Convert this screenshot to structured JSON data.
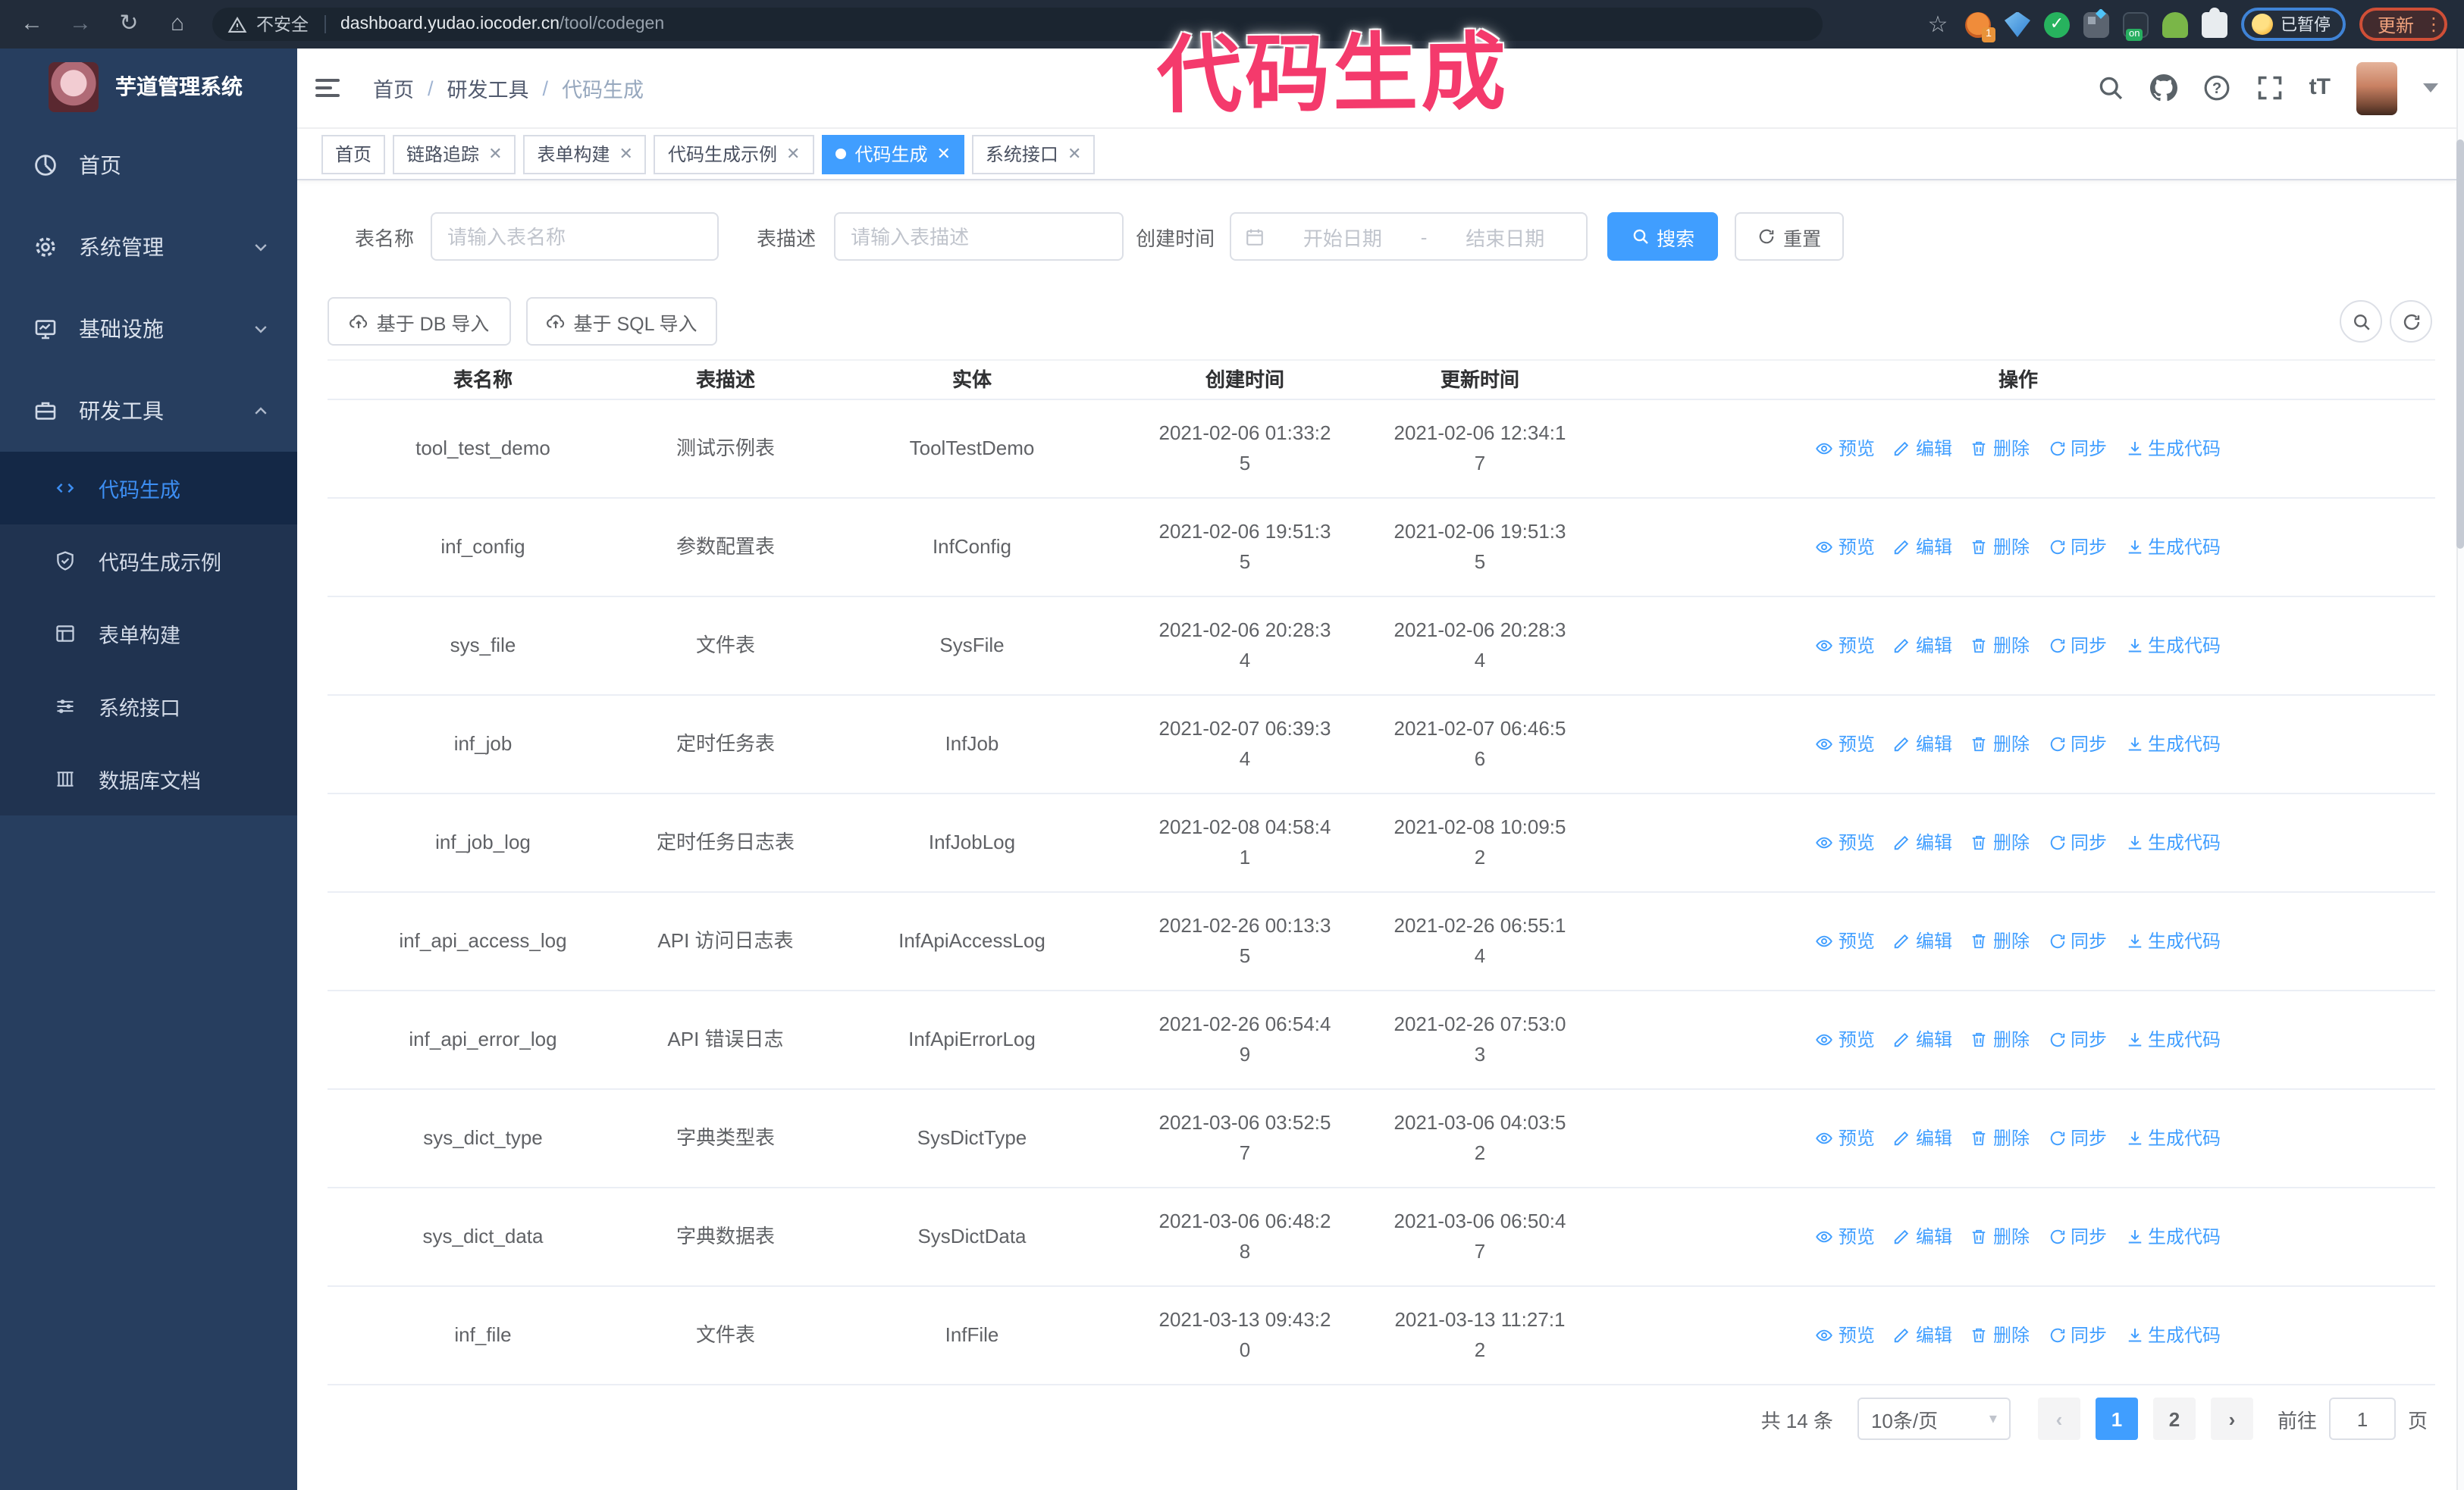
{
  "browser": {
    "security_label": "不安全",
    "url_host": "dashboard.yudao.iocoder.cn",
    "url_path": "/tool/codegen",
    "ext_badge": "1",
    "on_badge": "on",
    "paused_label": "已暂停",
    "update_label": "更新"
  },
  "annotation": {
    "text": "代码生成",
    "color": "#f43a6c"
  },
  "sidebar": {
    "app_title": "芋道管理系统",
    "items": [
      {
        "label": "首页",
        "icon": "dashboard-icon",
        "chevron": ""
      },
      {
        "label": "系统管理",
        "icon": "gear-icon",
        "chevron": "down"
      },
      {
        "label": "基础设施",
        "icon": "infrastructure-icon",
        "chevron": "down"
      },
      {
        "label": "研发工具",
        "icon": "tools-icon",
        "chevron": "up"
      }
    ],
    "submenu": [
      {
        "label": "代码生成",
        "icon": "code-icon",
        "active": true
      },
      {
        "label": "代码生成示例",
        "icon": "shield-check-icon",
        "active": false
      },
      {
        "label": "表单构建",
        "icon": "form-icon",
        "active": false
      },
      {
        "label": "系统接口",
        "icon": "sliders-icon",
        "active": false
      },
      {
        "label": "数据库文档",
        "icon": "database-doc-icon",
        "active": false
      }
    ]
  },
  "header": {
    "breadcrumb": [
      "首页",
      "研发工具",
      "代码生成"
    ]
  },
  "tabs": [
    {
      "label": "首页",
      "closable": false,
      "active": false
    },
    {
      "label": "链路追踪",
      "closable": true,
      "active": false
    },
    {
      "label": "表单构建",
      "closable": true,
      "active": false
    },
    {
      "label": "代码生成示例",
      "closable": true,
      "active": false
    },
    {
      "label": "代码生成",
      "closable": true,
      "active": true
    },
    {
      "label": "系统接口",
      "closable": true,
      "active": false
    }
  ],
  "filters": {
    "table_name_label": "表名称",
    "table_name_placeholder": "请输入表名称",
    "table_desc_label": "表描述",
    "table_desc_placeholder": "请输入表描述",
    "create_time_label": "创建时间",
    "date_start_placeholder": "开始日期",
    "date_separator": "-",
    "date_end_placeholder": "结束日期",
    "search_label": "搜索",
    "reset_label": "重置"
  },
  "toolbar": {
    "import_db_label": "基于 DB 导入",
    "import_sql_label": "基于 SQL 导入"
  },
  "table": {
    "columns": [
      "表名称",
      "表描述",
      "实体",
      "创建时间",
      "更新时间",
      "操作"
    ],
    "actions": [
      {
        "label": "预览",
        "icon": "eye-icon"
      },
      {
        "label": "编辑",
        "icon": "edit-icon"
      },
      {
        "label": "删除",
        "icon": "delete-icon"
      },
      {
        "label": "同步",
        "icon": "sync-icon"
      },
      {
        "label": "生成代码",
        "icon": "download-icon"
      }
    ],
    "rows": [
      {
        "name": "tool_test_demo",
        "desc": "测试示例表",
        "entity": "ToolTestDemo",
        "created": "2021-02-06 01:33:25",
        "updated": "2021-02-06 12:34:17"
      },
      {
        "name": "inf_config",
        "desc": "参数配置表",
        "entity": "InfConfig",
        "created": "2021-02-06 19:51:35",
        "updated": "2021-02-06 19:51:35"
      },
      {
        "name": "sys_file",
        "desc": "文件表",
        "entity": "SysFile",
        "created": "2021-02-06 20:28:34",
        "updated": "2021-02-06 20:28:34"
      },
      {
        "name": "inf_job",
        "desc": "定时任务表",
        "entity": "InfJob",
        "created": "2021-02-07 06:39:34",
        "updated": "2021-02-07 06:46:56"
      },
      {
        "name": "inf_job_log",
        "desc": "定时任务日志表",
        "entity": "InfJobLog",
        "created": "2021-02-08 04:58:41",
        "updated": "2021-02-08 10:09:52"
      },
      {
        "name": "inf_api_access_log",
        "desc": "API 访问日志表",
        "entity": "InfApiAccessLog",
        "created": "2021-02-26 00:13:35",
        "updated": "2021-02-26 06:55:14"
      },
      {
        "name": "inf_api_error_log",
        "desc": "API 错误日志",
        "entity": "InfApiErrorLog",
        "created": "2021-02-26 06:54:49",
        "updated": "2021-02-26 07:53:03"
      },
      {
        "name": "sys_dict_type",
        "desc": "字典类型表",
        "entity": "SysDictType",
        "created": "2021-03-06 03:52:57",
        "updated": "2021-03-06 04:03:52"
      },
      {
        "name": "sys_dict_data",
        "desc": "字典数据表",
        "entity": "SysDictData",
        "created": "2021-03-06 06:48:28",
        "updated": "2021-03-06 06:50:47"
      },
      {
        "name": "inf_file",
        "desc": "文件表",
        "entity": "InfFile",
        "created": "2021-03-13 09:43:20",
        "updated": "2021-03-13 11:27:12"
      }
    ]
  },
  "pagination": {
    "total": "共 14 条",
    "page_size": "10条/页",
    "pages": [
      "1",
      "2"
    ],
    "active_page": "1",
    "goto_label": "前往",
    "goto_value": "1",
    "goto_suffix": "页"
  },
  "colors": {
    "primary": "#409eff",
    "annotation_pink": "#f43a6c",
    "sidebar_bg": "#273e5f",
    "submenu_bg": "#203350",
    "sidebar_active_bg": "#142846",
    "sidebar_active_text": "#3d8ef2",
    "browser_toolbar_bg": "#222c3a",
    "update_button_border": "#cf4f37",
    "paused_badge_border": "#3f83d6"
  }
}
